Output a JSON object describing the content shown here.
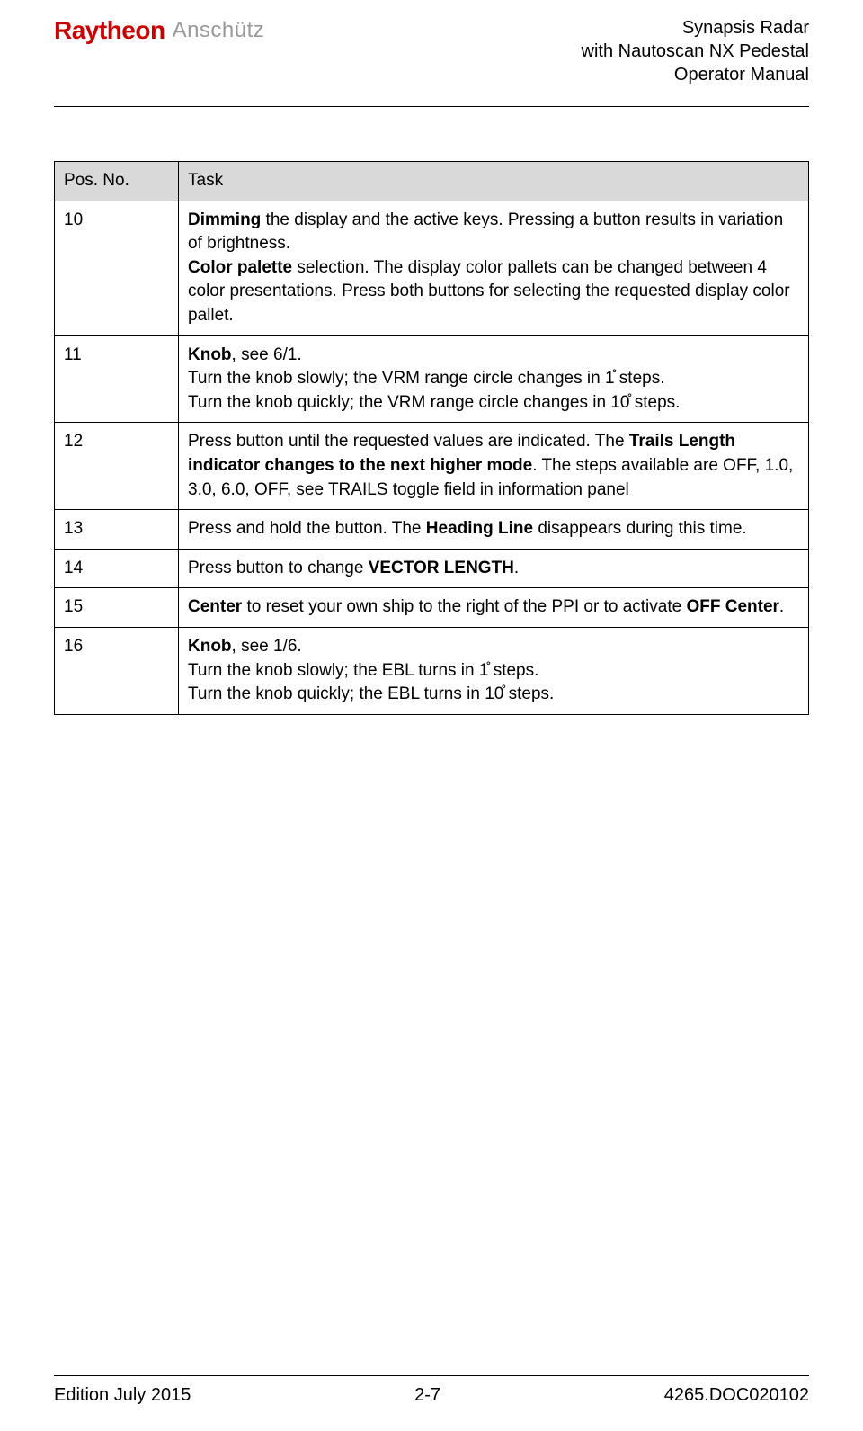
{
  "header": {
    "logo_left": "Raytheon",
    "logo_right": "Anschütz",
    "title_line1": "Synapsis Radar",
    "title_line2": "with Nautoscan NX Pedestal",
    "title_line3": "Operator Manual"
  },
  "table": {
    "header_pos": "Pos. No.",
    "header_task": "Task",
    "rows": [
      {
        "pos": "10",
        "task_html": "<span class=\"bold\">Dimming</span> the display and the active keys. Pressing a button results in variation of brightness.<br><span class=\"bold\">Color palette</span> selection. The display color pallets can be changed between 4 color presentations. Press both buttons for selecting the requested display color pallet."
      },
      {
        "pos": "11",
        "task_html": "<span class=\"bold\">Knob</span>, see 6/1.<br>Turn the knob slowly; the VRM range circle changes in 1̊ steps.<br>Turn the knob quickly; the VRM range circle changes in 10̊ steps."
      },
      {
        "pos": "12",
        "task_html": "Press button until the requested values are indicated. The <span class=\"bold\">Trails Length indicator changes to the next higher mode</span>. The steps available are OFF, 1.0, 3.0, 6.0, OFF, see TRAILS toggle field in information panel"
      },
      {
        "pos": "13",
        "task_html": "Press and hold the button. The <span class=\"bold\">Heading Line</span> disappears during this time."
      },
      {
        "pos": "14",
        "task_html": "Press button to change <span class=\"bold\">VECTOR LENGTH</span>."
      },
      {
        "pos": "15",
        "task_html": "<span class=\"bold\">Center</span> to reset your own ship to the right of the PPI or to activate <span class=\"bold\">OFF Center</span>."
      },
      {
        "pos": "16",
        "task_html": "<span class=\"bold\">Knob</span>, see 1/6.<br>Turn the knob slowly; the EBL turns in 1̊ steps.<br>Turn the knob quickly; the EBL turns in 10̊ steps."
      }
    ]
  },
  "footer": {
    "edition": "Edition July 2015",
    "page": "2-7",
    "doc": "4265.DOC020102"
  },
  "colors": {
    "raytheon_red": "#cc0000",
    "anschutz_gray": "#999999",
    "table_header_bg": "#d9d9d9",
    "border": "#000000",
    "text": "#000000",
    "background": "#ffffff"
  }
}
